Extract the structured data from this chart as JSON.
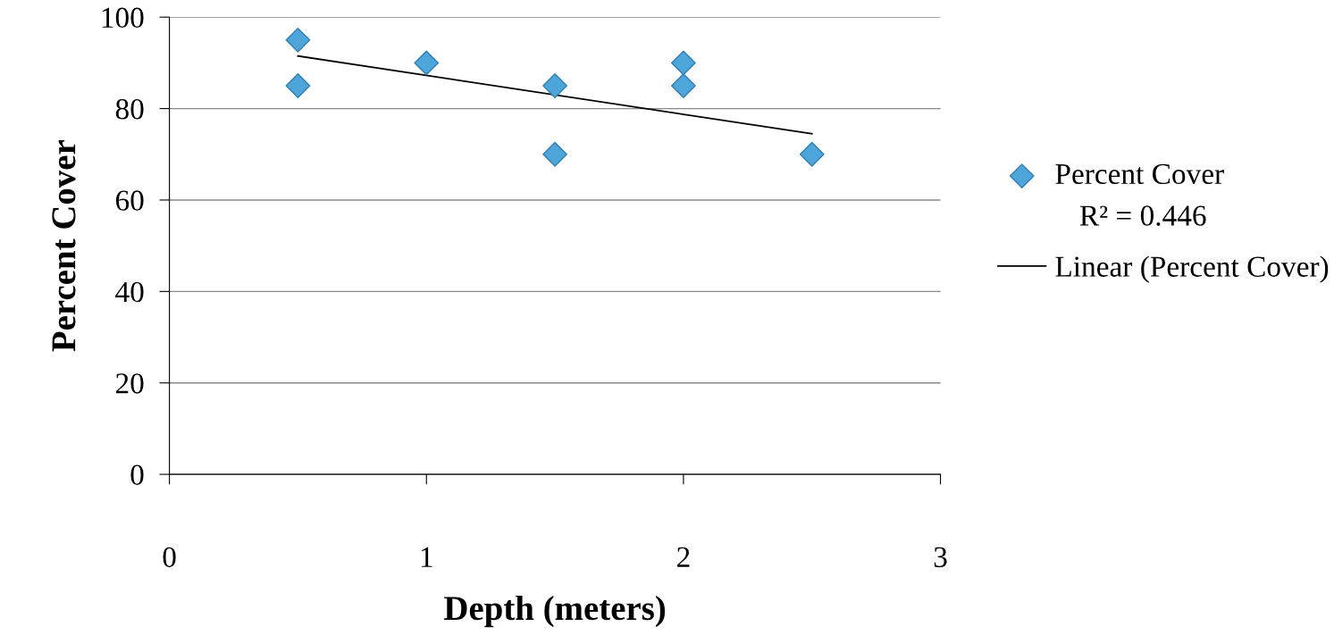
{
  "chart_data": {
    "type": "scatter",
    "xlabel": "Depth (meters)",
    "ylabel": "Percent Cover",
    "xlim": [
      0,
      3
    ],
    "xticks": [
      0,
      1,
      2,
      3
    ],
    "ylim": [
      0,
      100
    ],
    "yticks": [
      0,
      20,
      40,
      60,
      80,
      100
    ],
    "grid": "y",
    "legend": "right",
    "marker": "diamond",
    "series": [
      {
        "name": "Percent Cover",
        "color": "#4ea5d9",
        "x": [
          0.5,
          0.5,
          1,
          1.5,
          1.5,
          2,
          2,
          2.5
        ],
        "values": [
          95,
          85,
          90,
          85,
          70,
          90,
          85,
          70
        ]
      },
      {
        "name": "Linear (Percent Cover)",
        "type": "line",
        "color": "#000000",
        "marker": "none",
        "x": [
          0.5,
          2.5
        ],
        "values": [
          91.5,
          74.5
        ]
      }
    ],
    "annotations": [
      "R² = 0.446"
    ]
  }
}
